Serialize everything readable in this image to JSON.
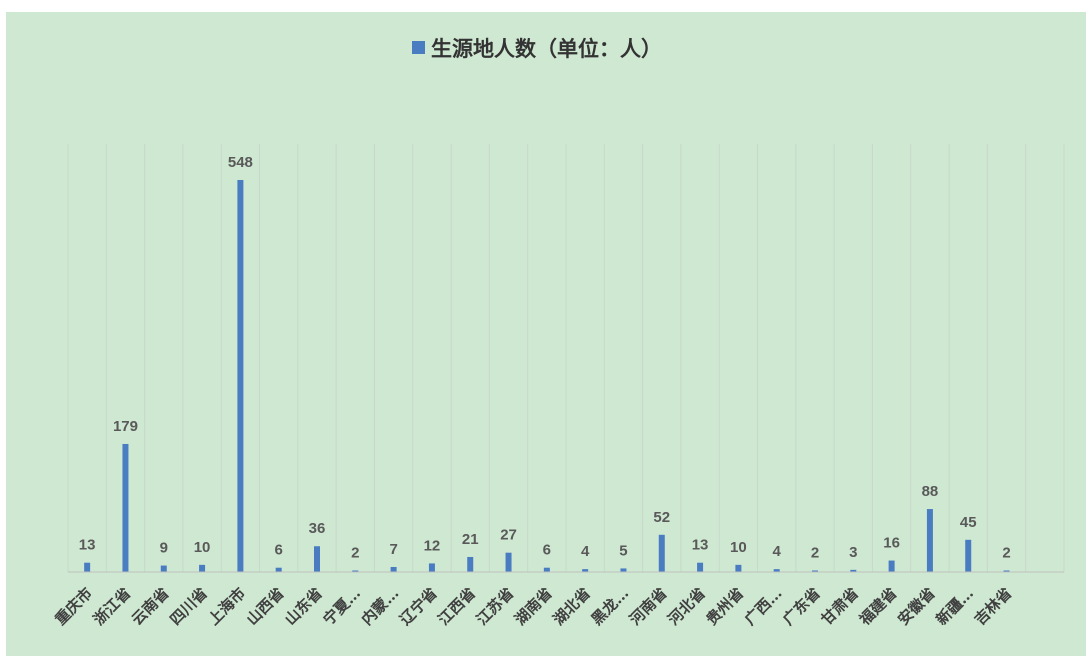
{
  "chart_data": {
    "type": "bar",
    "legend_position": "top",
    "grid": "vertical",
    "series": [
      {
        "name": "生源地人数（单位：人）",
        "color": "#4a7cc2",
        "values": [
          13,
          179,
          9,
          10,
          548,
          6,
          36,
          2,
          7,
          12,
          21,
          27,
          6,
          4,
          5,
          52,
          13,
          10,
          4,
          2,
          3,
          16,
          88,
          45,
          2
        ]
      }
    ],
    "categories": [
      "重庆市",
      "浙江省",
      "云南省",
      "四川省",
      "上海市",
      "山西省",
      "山东省",
      "宁夏…",
      "内蒙…",
      "辽宁省",
      "江西省",
      "江苏省",
      "湖南省",
      "湖北省",
      "黑龙…",
      "河南省",
      "河北省",
      "贵州省",
      "广西…",
      "广东省",
      "甘肃省",
      "福建省",
      "安徽省",
      "新疆…",
      "吉林省"
    ],
    "ylim": [
      0,
      548
    ],
    "colors": {
      "background": "#cfe8d2",
      "gridline": "#c8d8cb",
      "axis": "#bfbfbf"
    }
  }
}
